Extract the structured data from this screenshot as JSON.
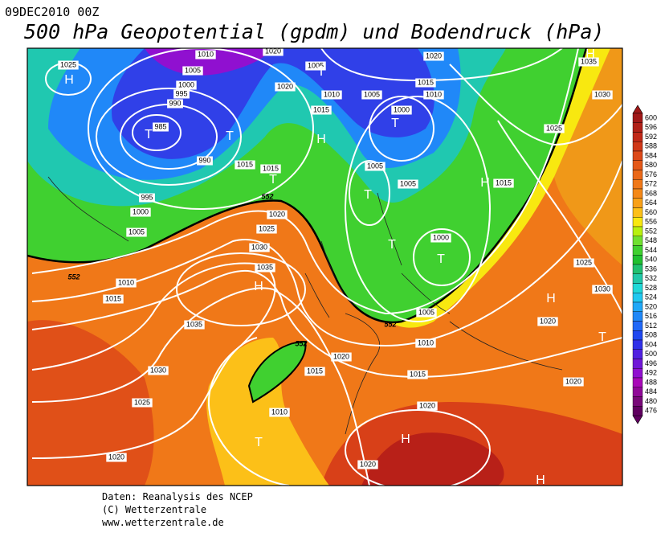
{
  "header": {
    "datetime": "09DEC2010 00Z",
    "title": "500 hPa Geopotential (gpdm) und Bodendruck (hPa)"
  },
  "footer": {
    "lines": [
      "Daten: Reanalysis des NCEP",
      "(C) Wetterzentrale",
      "www.wetterzentrale.de"
    ]
  },
  "colorbar": {
    "levels": [
      600,
      596,
      592,
      588,
      584,
      580,
      576,
      572,
      568,
      564,
      560,
      556,
      552,
      548,
      544,
      540,
      536,
      532,
      528,
      524,
      520,
      516,
      512,
      508,
      504,
      500,
      496,
      492,
      488,
      484,
      480,
      476
    ],
    "colors": [
      "#a01818",
      "#b02018",
      "#c02818",
      "#d03818",
      "#dc4818",
      "#e45818",
      "#ea6818",
      "#f07818",
      "#f48818",
      "#f8a018",
      "#fcc018",
      "#f8e810",
      "#b8f010",
      "#70e030",
      "#40d030",
      "#20c030",
      "#20c070",
      "#20c8a8",
      "#20d8d8",
      "#20c8f0",
      "#20a8f8",
      "#2088f8",
      "#2068f8",
      "#2048f0",
      "#3030e8",
      "#5020e0",
      "#7018d8",
      "#9010d0",
      "#a808b8",
      "#900898",
      "#780878",
      "#600060"
    ]
  },
  "map": {
    "isobar_labels": [
      "1025",
      "1010",
      "1020",
      "1005",
      "1000",
      "995",
      "990",
      "985",
      "990",
      "1015",
      "1015",
      "1020",
      "1005",
      "1010",
      "1015",
      "1005",
      "1000",
      "1015",
      "1010",
      "1020",
      "1035",
      "1030",
      "1025",
      "1015",
      "1005",
      "1005",
      "1000",
      "995",
      "1000",
      "1005",
      "1020",
      "1025",
      "1030",
      "1035",
      "1010",
      "1015",
      "1035",
      "1030",
      "1025",
      "1020",
      "1020",
      "1015",
      "1010",
      "1015",
      "1010",
      "1005",
      "1020",
      "1020",
      "1020",
      "1020",
      "1025",
      "1030"
    ],
    "geopotential_labels": [
      "552",
      "552",
      "552",
      "552"
    ],
    "centers": [
      "H",
      "H",
      "H",
      "H",
      "H",
      "H",
      "H",
      "H",
      "T",
      "T",
      "T",
      "T",
      "T",
      "T",
      "T",
      "T",
      "T",
      "T"
    ]
  }
}
